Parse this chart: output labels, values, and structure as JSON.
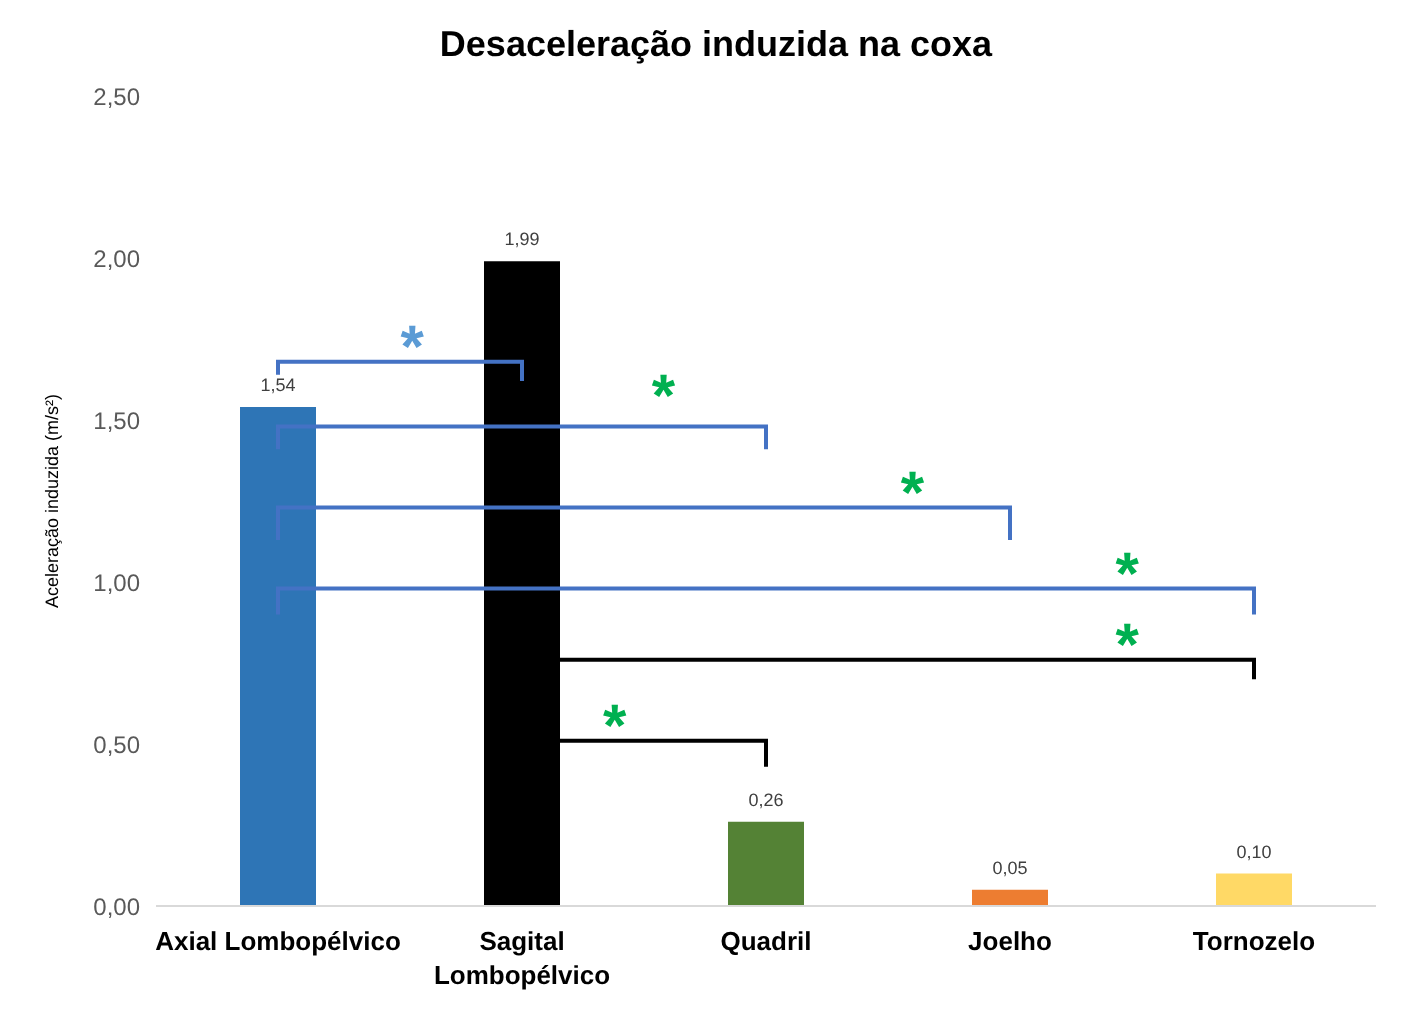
{
  "chart_data": {
    "type": "bar",
    "title": "Desaceleração induzida na coxa",
    "ylabel": "Aceleração induzida (m/s²)",
    "categories": [
      "Axial Lombopélvico",
      "Sagital Lombopélvico",
      "Quadril",
      "Joelho",
      "Tornozelo"
    ],
    "values": [
      1.54,
      1.99,
      0.26,
      0.05,
      0.1
    ],
    "colors": [
      "#2e75b6",
      "#000000",
      "#548235",
      "#ed7d31",
      "#ffd966"
    ],
    "value_labels": [
      "1,54",
      "1,99",
      "0,26",
      "0,05",
      "0,10"
    ],
    "ylim": [
      0,
      2.5
    ],
    "yticks": [
      {
        "value": 0,
        "label": "0,00"
      },
      {
        "value": 0.5,
        "label": "0,50"
      },
      {
        "value": 1,
        "label": "1,00"
      },
      {
        "value": 1.5,
        "label": "1,50"
      },
      {
        "value": 2,
        "label": "2,00"
      },
      {
        "value": 2.5,
        "label": "2,50"
      }
    ],
    "grid": false,
    "annotations": [
      "*",
      "*",
      "*",
      "*",
      "*",
      "*"
    ]
  }
}
